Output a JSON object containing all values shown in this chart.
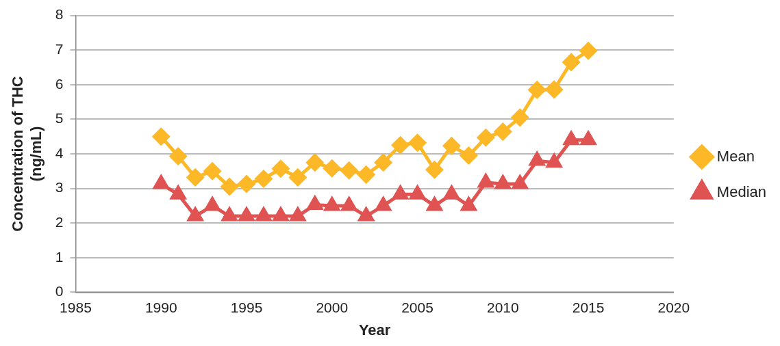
{
  "chart_data": {
    "type": "line",
    "xlabel": "Year",
    "ylabel": "Concentration of THC\n(ng/mL)",
    "x": [
      1990,
      1991,
      1992,
      1993,
      1994,
      1995,
      1996,
      1997,
      1998,
      1999,
      2000,
      2001,
      2002,
      2003,
      2004,
      2005,
      2006,
      2007,
      2008,
      2009,
      2010,
      2011,
      2012,
      2013,
      2014,
      2015
    ],
    "series": [
      {
        "name": "Mean",
        "color": "#fdb827",
        "marker": "diamond",
        "values": [
          4.5,
          3.93,
          3.32,
          3.5,
          3.05,
          3.13,
          3.28,
          3.57,
          3.32,
          3.75,
          3.58,
          3.52,
          3.4,
          3.75,
          4.25,
          4.32,
          3.54,
          4.23,
          3.95,
          4.47,
          4.64,
          5.05,
          5.85,
          5.86,
          6.65,
          6.98
        ]
      },
      {
        "name": "Median",
        "color": "#e05353",
        "marker": "triangle",
        "values": [
          3.13,
          2.83,
          2.2,
          2.5,
          2.2,
          2.2,
          2.2,
          2.2,
          2.2,
          2.53,
          2.5,
          2.5,
          2.2,
          2.5,
          2.83,
          2.83,
          2.5,
          2.83,
          2.5,
          3.17,
          3.13,
          3.13,
          3.8,
          3.75,
          4.4,
          4.4
        ]
      }
    ],
    "xlim": [
      1985,
      2020
    ],
    "xticks": [
      1985,
      1990,
      1995,
      2000,
      2005,
      2010,
      2015,
      2020
    ],
    "ylim": [
      0,
      8
    ],
    "yticks": [
      0,
      1,
      2,
      3,
      4,
      5,
      6,
      7,
      8
    ],
    "grid": "y",
    "legend": "right",
    "line_style": "solid"
  }
}
